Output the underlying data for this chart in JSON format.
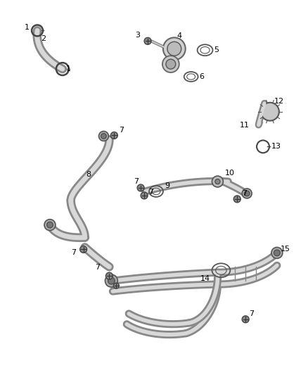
{
  "bg_color": "#ffffff",
  "line_color": "#555555",
  "fig_width": 4.38,
  "fig_height": 5.33,
  "dpi": 100,
  "hose_lw_outer": 3.5,
  "hose_lw_inner": 1.8,
  "hose_color_outer": "#888888",
  "hose_color_inner": "#e8e8e8",
  "label_fontsize": 7.5
}
